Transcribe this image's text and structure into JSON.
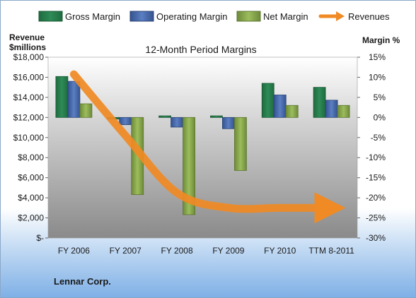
{
  "chart_data": {
    "type": "bar",
    "title": "12-Month Period Margins",
    "footer": "Lennar Corp.",
    "categories": [
      "FY 2006",
      "FY 2007",
      "FY 2008",
      "FY 2009",
      "FY 2010",
      "TTM 8-2011"
    ],
    "y_left": {
      "label_line1": "Revenue",
      "label_line2": "$millions",
      "range": [
        0,
        18000
      ],
      "ticks": [
        "$-",
        "$2,000",
        "$4,000",
        "$6,000",
        "$8,000",
        "$10,000",
        "$12,000",
        "$14,000",
        "$16,000",
        "$18,000"
      ],
      "tick_values": [
        0,
        2000,
        4000,
        6000,
        8000,
        10000,
        12000,
        14000,
        16000,
        18000
      ]
    },
    "y_right": {
      "label": "Margin %",
      "range": [
        -30,
        15
      ],
      "ticks": [
        "-30%",
        "-25%",
        "-20%",
        "-15%",
        "-10%",
        "-5%",
        "0%",
        "5%",
        "10%",
        "15%"
      ],
      "tick_values": [
        -30,
        -25,
        -20,
        -15,
        -10,
        -5,
        0,
        5,
        10,
        15
      ]
    },
    "series": [
      {
        "name": "Gross Margin",
        "axis": "right",
        "color": "#2e8b57",
        "values": [
          10.2,
          -0.4,
          0.4,
          0.4,
          8.5,
          7.5
        ]
      },
      {
        "name": "Operating Margin",
        "axis": "right",
        "color": "#4f72b8",
        "values": [
          9.0,
          -1.8,
          -2.4,
          -2.8,
          5.6,
          4.3
        ]
      },
      {
        "name": "Net Margin",
        "axis": "right",
        "color": "#8fb050",
        "values": [
          3.4,
          -19.2,
          -24.2,
          -13.2,
          3.0,
          3.0
        ]
      },
      {
        "name": "Revenues",
        "axis": "left",
        "color": "#f08a24",
        "type": "line",
        "values": [
          16300,
          10200,
          4500,
          3000,
          3000,
          3000
        ]
      }
    ],
    "legend": [
      "Gross Margin",
      "Operating Margin",
      "Net Margin",
      "Revenues"
    ],
    "legend_position": "top",
    "grid": false
  }
}
